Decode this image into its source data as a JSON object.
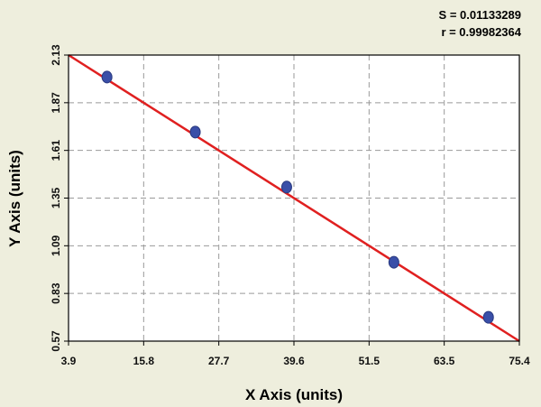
{
  "chart_data": {
    "type": "scatter",
    "title": "",
    "xlabel": "X Axis (units)",
    "ylabel": "Y Axis (units)",
    "xlim": [
      3.9,
      75.4
    ],
    "ylim": [
      0.57,
      2.13
    ],
    "x_ticks": [
      "3.9",
      "15.8",
      "27.7",
      "39.6",
      "51.5",
      "63.5",
      "75.4"
    ],
    "y_ticks": [
      "0.57",
      "0.83",
      "1.09",
      "1.35",
      "1.61",
      "1.87",
      "2.13"
    ],
    "grid": true,
    "series": [
      {
        "points": [
          {
            "x": 10.0,
            "y": 2.01
          },
          {
            "x": 24.0,
            "y": 1.71
          },
          {
            "x": 38.5,
            "y": 1.41
          },
          {
            "x": 55.5,
            "y": 1.0
          },
          {
            "x": 70.5,
            "y": 0.7
          }
        ],
        "color": "#3a4fa8"
      }
    ],
    "fit_line": {
      "x": [
        3.9,
        75.4
      ],
      "y": [
        2.13,
        0.57
      ],
      "color": "#e02020"
    },
    "annotations": [
      "S = 0.01133289",
      "r = 0.99982364"
    ]
  }
}
